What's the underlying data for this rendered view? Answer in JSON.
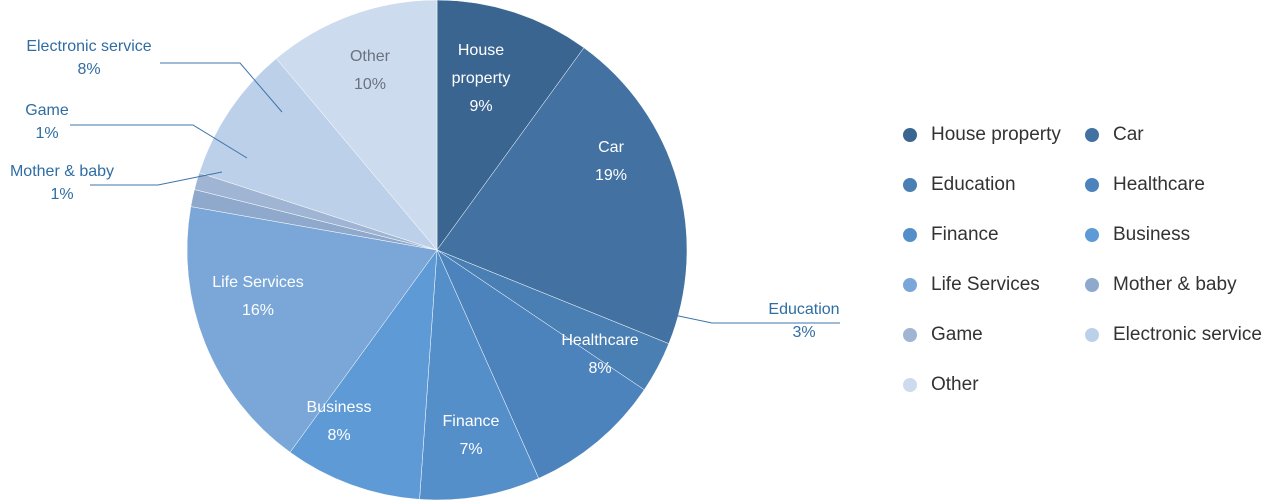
{
  "chart_data": {
    "type": "pie",
    "title": "",
    "slices": [
      {
        "label": "House property",
        "value": 9,
        "value_label": "9%",
        "color": "#3b6591",
        "label_lines": [
          "House",
          "property"
        ],
        "placement": "inside"
      },
      {
        "label": "Car",
        "value": 19,
        "value_label": "19%",
        "color": "#4372a2",
        "label_lines": [
          "Car"
        ],
        "placement": "inside"
      },
      {
        "label": "Education",
        "value": 3,
        "value_label": "3%",
        "color": "#4a7fb4",
        "label_lines": [
          "Education"
        ],
        "placement": "callout"
      },
      {
        "label": "Healthcare",
        "value": 8,
        "value_label": "8%",
        "color": "#4d83bd",
        "label_lines": [
          "Healthcare"
        ],
        "placement": "inside"
      },
      {
        "label": "Finance",
        "value": 7,
        "value_label": "7%",
        "color": "#548fca",
        "label_lines": [
          "Finance"
        ],
        "placement": "inside"
      },
      {
        "label": "Business",
        "value": 8,
        "value_label": "8%",
        "color": "#5e9bd6",
        "label_lines": [
          "Business"
        ],
        "placement": "inside"
      },
      {
        "label": "Life Services",
        "value": 16,
        "value_label": "16%",
        "color": "#7aa7d8",
        "label_lines": [
          "Life Services"
        ],
        "placement": "inside"
      },
      {
        "label": "Mother & baby",
        "value": 1,
        "value_label": "1%",
        "color": "#8ea9cb",
        "label_lines": [
          "Mother & baby"
        ],
        "placement": "callout"
      },
      {
        "label": "Game",
        "value": 1,
        "value_label": "1%",
        "color": "#9fb5d3",
        "label_lines": [
          "Game"
        ],
        "placement": "callout"
      },
      {
        "label": "Electronic service",
        "value": 8,
        "value_label": "8%",
        "color": "#bcd0e9",
        "label_lines": [
          "Electronic service"
        ],
        "placement": "callout"
      },
      {
        "label": "Other",
        "value": 10,
        "value_label": "10%",
        "color": "#cddbee",
        "label_lines": [
          "Other"
        ],
        "placement": "inside"
      }
    ],
    "legend": {
      "placement": "right",
      "items": [
        {
          "label": "House property",
          "color": "#3b6591"
        },
        {
          "label": "Car",
          "color": "#4372a2"
        },
        {
          "label": "Education",
          "color": "#4a7fb4"
        },
        {
          "label": "Healthcare",
          "color": "#4d83bd"
        },
        {
          "label": "Finance",
          "color": "#548fca"
        },
        {
          "label": "Business",
          "color": "#5e9bd6"
        },
        {
          "label": "Life Services",
          "color": "#7aa7d8"
        },
        {
          "label": "Mother & baby",
          "color": "#8ea9cb"
        },
        {
          "label": "Game",
          "color": "#9fb5d3"
        },
        {
          "label": "Electronic service",
          "color": "#bcd0e9"
        },
        {
          "label": "Other",
          "color": "#cddbee"
        }
      ]
    }
  }
}
